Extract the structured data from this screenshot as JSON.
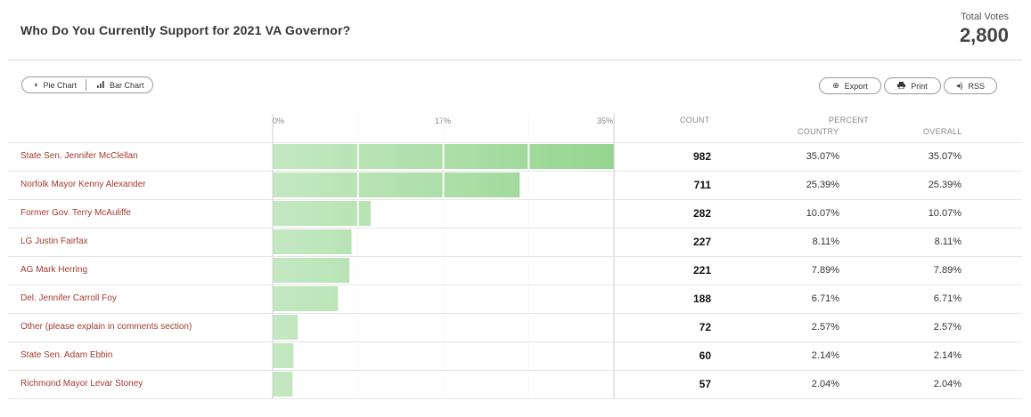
{
  "title": "Who Do You Currently Support for 2021 VA Governor?",
  "total": {
    "label": "Total Votes",
    "value": "2,800"
  },
  "view_toggle": {
    "pie_label": "Pie Chart",
    "pie_icon": "half-circle-icon",
    "bar_label": "Bar Chart",
    "bar_icon": "bar-chart-icon"
  },
  "actions": {
    "export_label": "Export",
    "export_icon": "plus-circle-icon",
    "print_label": "Print",
    "print_icon": "printer-icon",
    "rss_label": "RSS",
    "rss_icon": "speaker-icon"
  },
  "columns": {
    "count": "COUNT",
    "percent": "PERCENT",
    "country": "COUNTRY",
    "overall": "OVERALL"
  },
  "colors": {
    "bar_light": "#c4e8c2",
    "bar_dark": "#95d58f",
    "label_red": "#a33a2f"
  },
  "chart_data": {
    "type": "bar",
    "orientation": "horizontal",
    "xlim": [
      0,
      35.07
    ],
    "ticks": [
      "0%",
      "17%",
      "35%"
    ],
    "categories": [
      "State Sen. Jennifer McClellan",
      "Norfolk Mayor Kenny Alexander",
      "Former Gov. Terry McAuliffe",
      "LG Justin Fairfax",
      "AG Mark Herring",
      "Del. Jennifer Carroll Foy",
      "Other (please explain in comments section)",
      "State Sen. Adam Ebbin",
      "Richmond Mayor Levar Stoney"
    ],
    "values": [
      35.07,
      25.39,
      10.07,
      8.11,
      7.89,
      6.71,
      2.57,
      2.14,
      2.04
    ],
    "counts": [
      "982",
      "711",
      "282",
      "227",
      "221",
      "188",
      "72",
      "60",
      "57"
    ],
    "percent_country": [
      "35.07%",
      "25.39%",
      "10.07%",
      "8.11%",
      "7.89%",
      "6.71%",
      "2.57%",
      "2.14%",
      "2.04%"
    ],
    "percent_overall": [
      "35.07%",
      "25.39%",
      "10.07%",
      "8.11%",
      "7.89%",
      "6.71%",
      "2.57%",
      "2.14%",
      "2.04%"
    ]
  }
}
